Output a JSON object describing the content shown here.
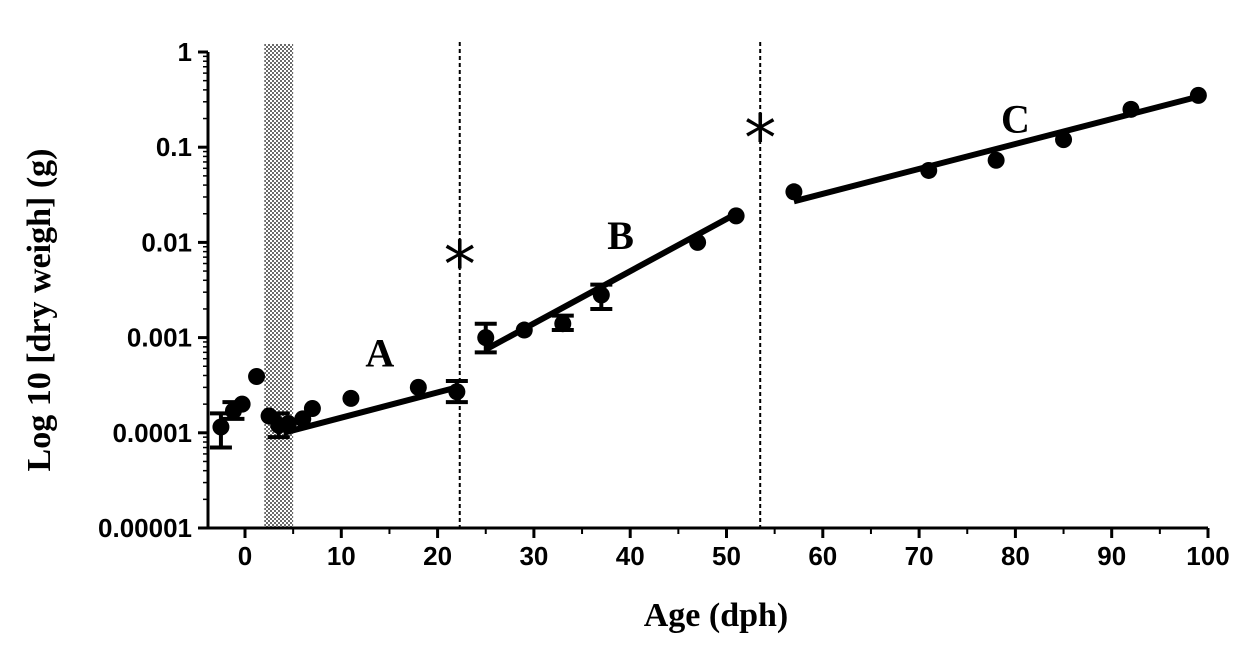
{
  "chart_data": {
    "type": "scatter",
    "xlabel": "Age (dph)",
    "ylabel": "Log 10 [dry weigh] (g)",
    "xlim": [
      -3,
      100
    ],
    "ylim": [
      1e-05,
      1
    ],
    "yscale": "log",
    "xticks": [
      0,
      10,
      20,
      30,
      40,
      50,
      60,
      70,
      80,
      90,
      100
    ],
    "yticks": [
      1e-05,
      0.0001,
      0.001,
      0.01,
      0.1,
      1
    ],
    "ytick_labels": [
      "0.00001",
      "0.0001",
      "0.001",
      "0.01",
      "0.1",
      "1"
    ],
    "grid": false,
    "shaded_region": {
      "x": [
        2,
        5
      ],
      "pattern": "checkered"
    },
    "dividers": [
      {
        "x": 22.3,
        "label": "*"
      },
      {
        "x": 53.5,
        "label": "*"
      }
    ],
    "points": [
      {
        "x": -2.5,
        "y": 0.000115,
        "err": [
          7e-05,
          0.00016
        ]
      },
      {
        "x": -1.2,
        "y": 0.00017,
        "err": [
          0.00014,
          0.00021
        ]
      },
      {
        "x": -0.3,
        "y": 0.0002
      },
      {
        "x": 1.2,
        "y": 0.00039
      },
      {
        "x": 2.5,
        "y": 0.00015
      },
      {
        "x": 3.5,
        "y": 0.00012,
        "err": [
          9e-05,
          0.00016
        ]
      },
      {
        "x": 4.5,
        "y": 0.000125
      },
      {
        "x": 6,
        "y": 0.00014
      },
      {
        "x": 7,
        "y": 0.00018
      },
      {
        "x": 11,
        "y": 0.00023
      },
      {
        "x": 18,
        "y": 0.0003
      },
      {
        "x": 22,
        "y": 0.00027,
        "err": [
          0.00021,
          0.00035
        ]
      },
      {
        "x": 25,
        "y": 0.001,
        "err": [
          0.0007,
          0.0014
        ]
      },
      {
        "x": 29,
        "y": 0.0012
      },
      {
        "x": 33,
        "y": 0.0014,
        "err": [
          0.0012,
          0.0017
        ]
      },
      {
        "x": 37,
        "y": 0.0028,
        "err": [
          0.002,
          0.0036
        ]
      },
      {
        "x": 47,
        "y": 0.01
      },
      {
        "x": 51,
        "y": 0.019
      },
      {
        "x": 57,
        "y": 0.034
      },
      {
        "x": 71,
        "y": 0.057
      },
      {
        "x": 78,
        "y": 0.073
      },
      {
        "x": 85,
        "y": 0.12
      },
      {
        "x": 92,
        "y": 0.25
      },
      {
        "x": 99,
        "y": 0.35
      }
    ],
    "fits": [
      {
        "label": "A",
        "x": [
          4,
          22
        ],
        "y": [
          0.0001,
          0.0003
        ],
        "label_at": {
          "x": 14,
          "y": 0.0007
        }
      },
      {
        "label": "B",
        "x": [
          25,
          51
        ],
        "y": [
          0.00075,
          0.02
        ],
        "label_at": {
          "x": 39,
          "y": 0.012
        }
      },
      {
        "label": "C",
        "x": [
          57,
          99
        ],
        "y": [
          0.027,
          0.34
        ],
        "label_at": {
          "x": 80,
          "y": 0.2
        }
      }
    ]
  }
}
